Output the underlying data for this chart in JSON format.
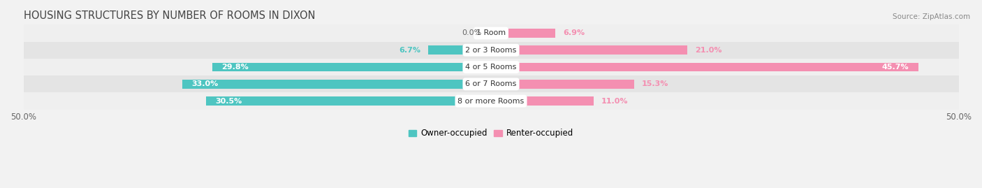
{
  "title": "HOUSING STRUCTURES BY NUMBER OF ROOMS IN DIXON",
  "source": "Source: ZipAtlas.com",
  "categories": [
    "1 Room",
    "2 or 3 Rooms",
    "4 or 5 Rooms",
    "6 or 7 Rooms",
    "8 or more Rooms"
  ],
  "owner_values": [
    0.0,
    6.7,
    29.8,
    33.0,
    30.5
  ],
  "renter_values": [
    6.9,
    21.0,
    45.7,
    15.3,
    11.0
  ],
  "owner_color": "#4EC5C1",
  "renter_color": "#F48FB1",
  "bar_height": 0.52,
  "xlim_left": -50,
  "xlim_right": 50,
  "background_color": "#f2f2f2",
  "row_bg_light": "#efefef",
  "row_bg_dark": "#e4e4e4",
  "title_fontsize": 10.5,
  "source_fontsize": 7.5,
  "legend_fontsize": 8.5,
  "value_fontsize": 8,
  "category_fontsize": 8,
  "axis_label_fontsize": 8.5
}
